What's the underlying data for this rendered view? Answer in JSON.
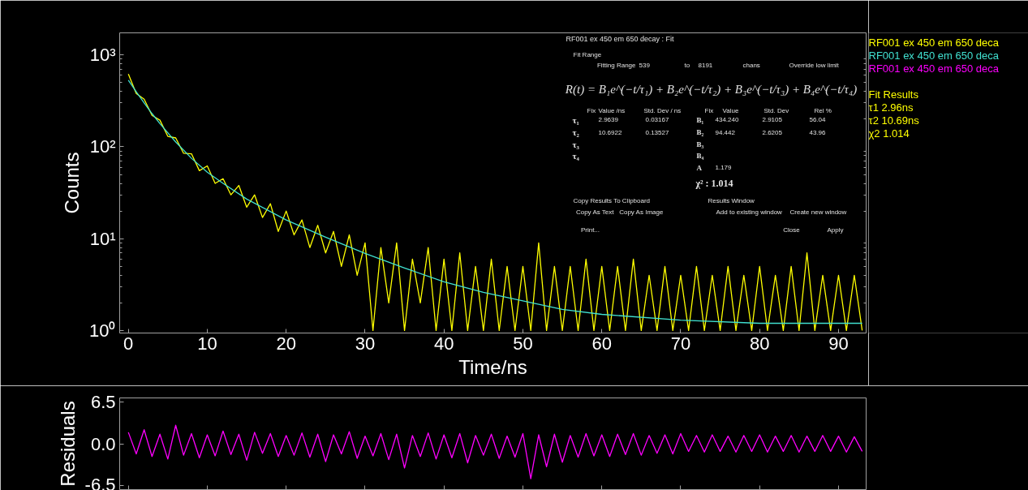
{
  "chart_data": [
    {
      "type": "line",
      "xlabel": "Time/ns",
      "ylabel": "Counts",
      "log": true,
      "xlim": [
        -1.1,
        93.5
      ],
      "ylim": [
        0.94,
        1740
      ],
      "xticks": [
        0,
        10,
        20,
        30,
        40,
        50,
        60,
        70,
        80,
        90
      ],
      "yticks": [
        {
          "value": 1,
          "label": "10⁰"
        },
        {
          "value": 10,
          "label": "10¹"
        },
        {
          "value": 100,
          "label": "10²"
        },
        {
          "value": 1000,
          "label": "10³"
        }
      ],
      "series": [
        {
          "name": "RF001 ex 450 em 650 deca",
          "color": "#ffff00",
          "x": [
            0,
            1,
            2,
            3,
            4,
            5,
            6,
            7,
            8,
            9,
            10,
            11,
            12,
            13,
            14,
            15,
            16,
            17,
            18,
            19,
            20,
            21,
            22,
            23,
            24,
            25,
            26,
            27,
            28,
            29,
            30,
            31,
            32,
            33,
            34,
            35,
            36,
            37,
            38,
            39,
            40,
            41,
            42,
            43,
            44,
            45,
            46,
            47,
            48,
            49,
            50,
            51,
            52,
            53,
            54,
            55,
            56,
            57,
            58,
            59,
            60,
            61,
            62,
            63,
            64,
            65,
            66,
            67,
            68,
            69,
            70,
            71,
            72,
            73,
            74,
            75,
            76,
            77,
            78,
            79,
            80,
            81,
            82,
            83,
            84,
            85,
            86,
            87,
            88,
            89,
            90,
            91,
            92,
            93
          ],
          "values": [
            620,
            380,
            330,
            220,
            195,
            130,
            125,
            85,
            84,
            55,
            62,
            40,
            45,
            30,
            38,
            22,
            30,
            17,
            24,
            12,
            20,
            11,
            16,
            8,
            14,
            7,
            12,
            5,
            11,
            4,
            9,
            1,
            8,
            2,
            9,
            1,
            6,
            2,
            8,
            1,
            6,
            1,
            7,
            1,
            5,
            1,
            6,
            1,
            5,
            1,
            5,
            1,
            9,
            1,
            5,
            1,
            5,
            1,
            6,
            1,
            5,
            1,
            5,
            1,
            6,
            1,
            4,
            1,
            5,
            1,
            4,
            1,
            5,
            1,
            4,
            1,
            5,
            1,
            4,
            1,
            5,
            1,
            4,
            1,
            5,
            1,
            7,
            1,
            4,
            1,
            4,
            1,
            4,
            1
          ]
        },
        {
          "name": "RF001 ex 450 em 650 deca",
          "color": "#40e0d0",
          "x": [
            0,
            1,
            2,
            3,
            4,
            6,
            8,
            10,
            12,
            15,
            20,
            25,
            30,
            35,
            40,
            45,
            50,
            55,
            60,
            70,
            80,
            93
          ],
          "values": [
            530,
            397,
            301,
            230,
            179,
            113,
            75,
            53,
            40,
            27,
            16,
            10.4,
            6.9,
            4.8,
            3.4,
            2.6,
            2.1,
            1.7,
            1.5,
            1.3,
            1.2,
            1.2
          ]
        }
      ],
      "annotations": [
        "Fit Results",
        "τ1   2.96ns",
        "τ2   10.69ns",
        "χ2   1.014"
      ]
    },
    {
      "type": "line",
      "ylabel": "Residuals",
      "xlim": [
        -1.1,
        93.5
      ],
      "xticks": [
        0,
        10,
        20,
        30,
        40,
        50,
        60,
        70,
        80,
        90
      ],
      "ylim": [
        -7.2,
        7.2
      ],
      "yticks": [
        6.5,
        {
          "value": 0,
          "label": "0.0"
        },
        -6.5
      ],
      "tick_labels": "y",
      "series": [
        {
          "name": "RF001 ex 450 em 650 deca",
          "color": "#ff00ff",
          "x": [
            0,
            1,
            2,
            3,
            4,
            5,
            6,
            7,
            8,
            9,
            10,
            11,
            12,
            13,
            14,
            15,
            16,
            17,
            18,
            19,
            20,
            21,
            22,
            23,
            24,
            25,
            26,
            27,
            28,
            29,
            30,
            31,
            32,
            33,
            34,
            35,
            36,
            37,
            38,
            39,
            40,
            41,
            42,
            43,
            44,
            45,
            46,
            47,
            48,
            49,
            50,
            51,
            52,
            53,
            54,
            55,
            56,
            57,
            58,
            59,
            60,
            61,
            62,
            63,
            64,
            65,
            66,
            67,
            68,
            69,
            70,
            71,
            72,
            73,
            74,
            75,
            76,
            77,
            78,
            79,
            80,
            81,
            82,
            83,
            84,
            85,
            86,
            87,
            88,
            89,
            90,
            91,
            92,
            93
          ],
          "values": [
            1.8,
            -1.6,
            2.2,
            -2.0,
            1.5,
            -2.4,
            2.9,
            -1.8,
            1.6,
            -2.2,
            1.4,
            -1.9,
            2.0,
            -1.7,
            1.5,
            -2.6,
            1.8,
            -1.5,
            1.6,
            -2.0,
            1.3,
            -1.8,
            1.7,
            -2.1,
            1.5,
            -2.8,
            1.4,
            -1.6,
            1.9,
            -2.3,
            1.2,
            -1.9,
            1.6,
            -2.5,
            1.5,
            -3.8,
            1.3,
            -2.0,
            1.7,
            -2.4,
            1.4,
            -2.2,
            1.6,
            -3.0,
            1.3,
            -1.8,
            1.5,
            -2.3,
            1.2,
            -2.1,
            1.6,
            -5.5,
            1.4,
            -3.6,
            1.5,
            -2.9,
            1.3,
            -2.1,
            1.6,
            -1.9,
            1.4,
            -2.0,
            1.5,
            -1.7,
            1.6,
            -1.8,
            1.3,
            -1.5,
            1.4,
            -1.6,
            1.6,
            -1.2,
            1.3,
            -1.3,
            1.4,
            -1.2,
            1.2,
            -1.3,
            1.3,
            -1.2,
            1.4,
            -1.3,
            1.2,
            -1.2,
            1.3,
            -1.3,
            1.2,
            -1.2,
            1.3,
            -1.2,
            1.2,
            -1.3,
            1.1,
            -1.2
          ]
        }
      ]
    },
    {
      "type": "other",
      "title": "RF001 ex 450 em 650 decay : Fit",
      "annotations": [
        "Fit Range",
        "Fitting Range",
        "539",
        "to",
        "8191",
        "chans",
        "Override low limit",
        "R(t) = B₁e^(−t/τ₁) + B₂e^(−t/τ₂) + B₃e^(−t/τ₃) + B₄e^(−t/τ₄)",
        "Fix",
        "Value /ns",
        "Std. Dev / ns",
        "Fix",
        "Value",
        "Std. Dev",
        "Rel %",
        "τ₁",
        "2.9639",
        "0.03167",
        "B₁",
        "434.240",
        "2.9105",
        "56.04",
        "τ₂",
        "10.6922",
        "0.13527",
        "B₂",
        "94.442",
        "2.6205",
        "43.96",
        "τ₃",
        "B₃",
        "τ₄",
        "B₄",
        "A",
        "1.179",
        "χ² : 1.014",
        "Copy Results To Clipboard",
        "Copy As Text",
        "Copy As Image",
        "Results Window",
        "Add to existing window",
        "Create new window",
        "Print...",
        "Close",
        "Apply"
      ]
    }
  ]
}
